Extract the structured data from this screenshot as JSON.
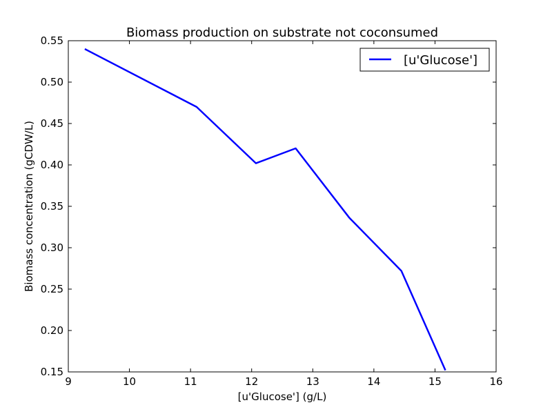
{
  "chart_data": {
    "type": "line",
    "title": "Biomass production on substrate not coconsumed",
    "xlabel": "[u'Glucose'] (g/L)",
    "ylabel": "Biomass concentration (gCDW/L)",
    "xlim": [
      9,
      16
    ],
    "ylim": [
      0.15,
      0.55
    ],
    "xticks": [
      9,
      10,
      11,
      12,
      13,
      14,
      15,
      16
    ],
    "yticks": [
      "0.15",
      "0.20",
      "0.25",
      "0.30",
      "0.35",
      "0.40",
      "0.45",
      "0.50",
      "0.55"
    ],
    "grid": false,
    "legend_position": "top-right",
    "series": [
      {
        "name": "[u'Glucose']",
        "color": "#0000ff",
        "x": [
          9.27,
          11.1,
          12.07,
          12.72,
          13.6,
          14.45,
          15.17
        ],
        "y": [
          0.54,
          0.47,
          0.402,
          0.42,
          0.336,
          0.272,
          0.152
        ]
      }
    ]
  }
}
